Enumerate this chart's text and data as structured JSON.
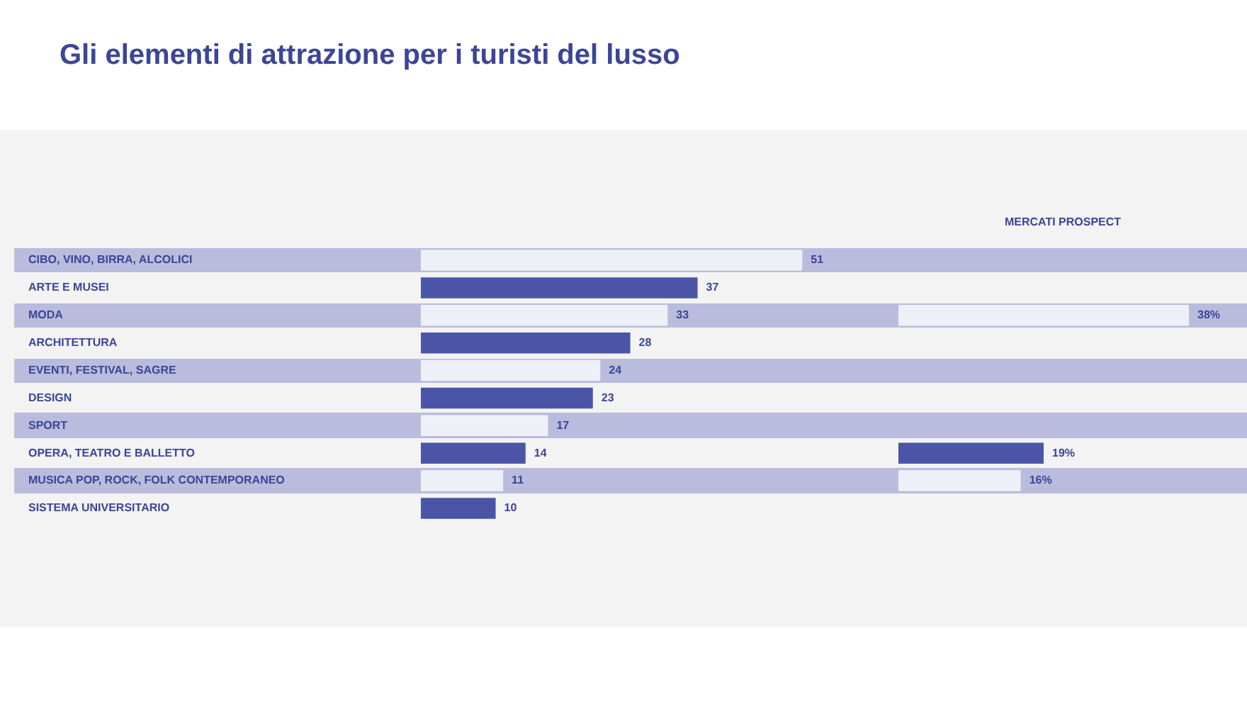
{
  "chart_data": [
    {
      "type": "bar",
      "orientation": "horizontal",
      "title": "Gli elementi di attrazione per i turisti del lusso",
      "categories": [
        "CIBO, VINO, BIRRA, ALCOLICI",
        "ARTE E MUSEI",
        "MODA",
        "ARCHITETTURA",
        "EVENTI, FESTIVAL, SAGRE",
        "DESIGN",
        "SPORT",
        "OPERA, TEATRO E BALLETTO",
        "MUSICA POP, ROCK, FOLK CONTEMPORANEO",
        "SISTEMA UNIVERSITARIO"
      ],
      "values": [
        51,
        37,
        33,
        28,
        24,
        23,
        17,
        14,
        11,
        10
      ],
      "colors": [
        "#eef0f8",
        "#4a55a8",
        "#eef0f8",
        "#4a55a8",
        "#eef0f8",
        "#4a55a8",
        "#eef0f8",
        "#4a55a8",
        "#eef0f8",
        "#4a55a8"
      ],
      "data_labels": true,
      "tick_labels": "y"
    },
    {
      "type": "bar",
      "orientation": "horizontal",
      "title": "MERCATI PROSPECT",
      "categories": [
        null,
        null,
        null,
        null,
        null,
        null,
        null,
        null,
        null,
        null
      ],
      "values": [
        null,
        null,
        38,
        null,
        null,
        null,
        null,
        19,
        16,
        null
      ],
      "colors": [
        "#eef0f8",
        "#4a55a8",
        "#eef0f8",
        "#4a55a8",
        "#eef0f8",
        "#4a55a8",
        "#eef0f8",
        "#4a55a8",
        "#eef0f8",
        "#4a55a8"
      ],
      "value_labels": [
        null,
        null,
        "38%",
        null,
        null,
        null,
        null,
        "19%",
        "16%",
        null
      ],
      "tick_labels": false
    }
  ]
}
